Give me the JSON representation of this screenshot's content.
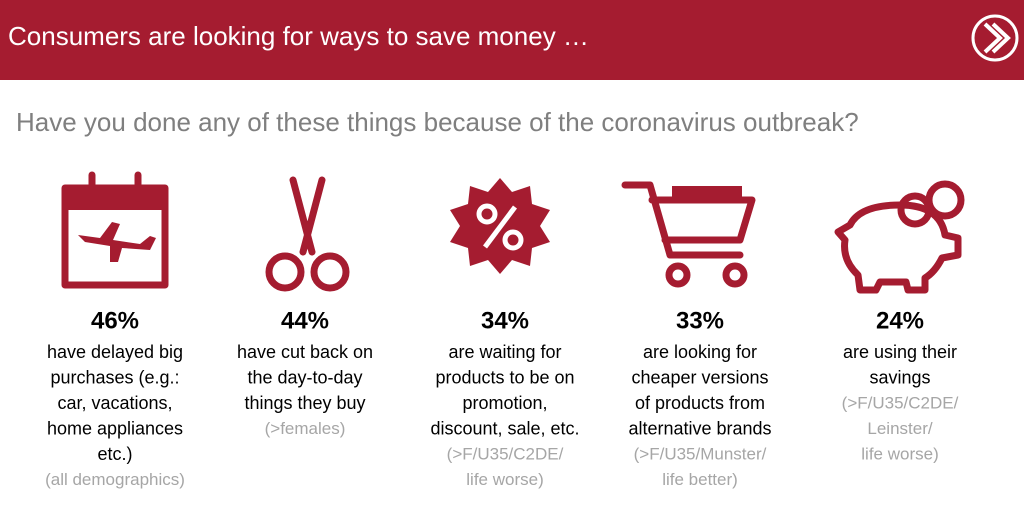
{
  "header": {
    "title": "Consumers are looking for ways to save money …"
  },
  "question": "Have you done any of these things because of the coronavirus outbreak?",
  "items": [
    {
      "percent": "46%",
      "lines": [
        "have delayed big",
        "purchases (e.g.:",
        "car, vacations,",
        "home appliances",
        "etc.)"
      ],
      "notes": [
        "(all demographics)"
      ]
    },
    {
      "percent": "44%",
      "lines": [
        "have cut back on",
        "the day-to-day",
        "things they  buy"
      ],
      "notes": [
        "(>females)"
      ]
    },
    {
      "percent": "34%",
      "lines": [
        "are waiting for",
        "products to be on",
        "promotion,",
        "discount, sale, etc."
      ],
      "notes": [
        "(>F/U35/C2DE/",
        "life worse)"
      ]
    },
    {
      "percent": "33%",
      "lines": [
        "are looking for",
        "cheaper versions",
        "of products from",
        "alternative brands"
      ],
      "notes": [
        "(>F/U35/Munster/",
        "life better)"
      ]
    },
    {
      "percent": "24%",
      "lines": [
        "are using their",
        "savings"
      ],
      "notes": [
        "(>F/U35/C2DE/",
        "Leinster/",
        "life worse)"
      ]
    }
  ]
}
